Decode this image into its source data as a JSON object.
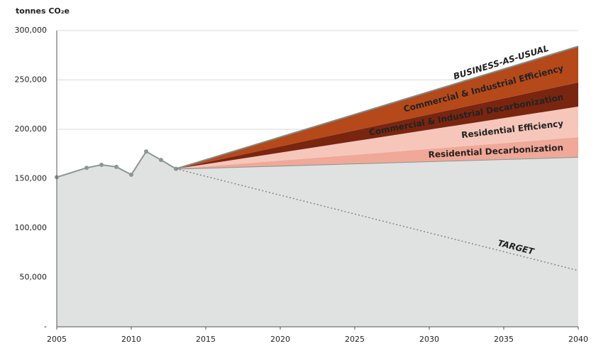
{
  "chart_data": {
    "type": "stacked-area",
    "y_label": "tonnes CO₂e",
    "x": [
      2005,
      2007,
      2008,
      2009,
      2010,
      2011,
      2012,
      2013,
      2040
    ],
    "xlim": [
      2005,
      2040
    ],
    "xticks": [
      2005,
      2010,
      2015,
      2020,
      2025,
      2030,
      2035,
      2040
    ],
    "ylim": [
      0,
      300000
    ],
    "yticks": [
      {
        "value": 0,
        "label": "-"
      },
      {
        "value": 50000,
        "label": "50,000"
      },
      {
        "value": 100000,
        "label": "100,000"
      },
      {
        "value": 150000,
        "label": "150,000"
      },
      {
        "value": 200000,
        "label": "200,000"
      },
      {
        "value": 250000,
        "label": "250,000"
      },
      {
        "value": 300000,
        "label": "300,000"
      }
    ],
    "grid": true,
    "series": [
      {
        "kind": "base",
        "color": "#dfe2e1",
        "line_color": "#8c9693",
        "values": [
          151500,
          161000,
          164000,
          162000,
          154000,
          177500,
          169000,
          160000,
          172000
        ]
      },
      {
        "kind": "stack",
        "name": "Residential Decarbonization",
        "color": "#f0a898",
        "values": [
          null,
          null,
          null,
          null,
          null,
          null,
          null,
          0,
          20000
        ]
      },
      {
        "kind": "stack",
        "name": "Residential Efficiency",
        "color": "#f6c6bb",
        "values": [
          null,
          null,
          null,
          null,
          null,
          null,
          null,
          0,
          31000
        ]
      },
      {
        "kind": "stack",
        "name": "Commercial & Industrial Decarbonization",
        "color": "#7a2510",
        "values": [
          null,
          null,
          null,
          null,
          null,
          null,
          null,
          0,
          24500
        ]
      },
      {
        "kind": "stack",
        "name": "Commercial & Industrial Efficiency",
        "color": "#b5491a",
        "values": [
          null,
          null,
          null,
          null,
          null,
          null,
          null,
          0,
          36500
        ]
      },
      {
        "kind": "line",
        "name": "BUSINESS-AS-USUAL",
        "color": "#7f8c89",
        "dash": "solid",
        "values": [
          null,
          null,
          null,
          null,
          null,
          null,
          null,
          160000,
          284000
        ]
      },
      {
        "kind": "line",
        "name": "TARGET",
        "color": "#7f8c89",
        "dash": "dotted",
        "values": [
          null,
          null,
          null,
          null,
          null,
          null,
          null,
          160000,
          57000
        ]
      }
    ]
  }
}
